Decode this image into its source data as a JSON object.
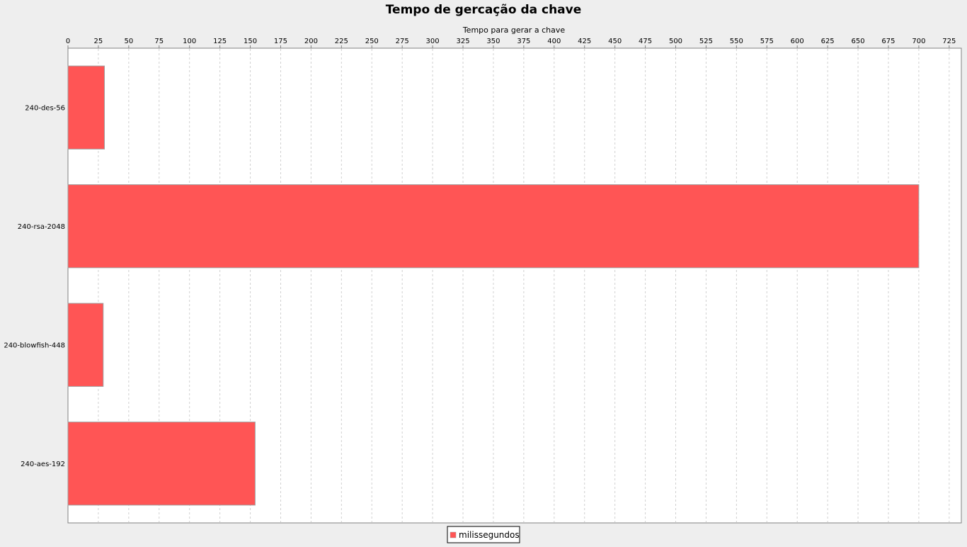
{
  "chart_data": {
    "type": "bar",
    "orientation": "horizontal",
    "title": "Tempo de gercação da chave",
    "xlabel": "Tempo para gerar a chave",
    "ylabel": "",
    "categories": [
      "240-des-56",
      "240-rsa-2048",
      "240-blowfish-448",
      "240-aes-192"
    ],
    "series": [
      {
        "name": "milissegundos",
        "values": [
          30,
          700,
          29,
          154
        ],
        "color": "#ff5555"
      }
    ],
    "xlim": [
      0,
      735
    ],
    "xticks": [
      "0",
      "25",
      "50",
      "75",
      "100",
      "125",
      "150",
      "175",
      "200",
      "225",
      "250",
      "275",
      "300",
      "325",
      "350",
      "375",
      "400",
      "425",
      "450",
      "475",
      "500",
      "525",
      "550",
      "575",
      "600",
      "625",
      "650",
      "675",
      "700",
      "725"
    ],
    "axis_position": "top",
    "grid": true,
    "legend_position": "bottom"
  }
}
